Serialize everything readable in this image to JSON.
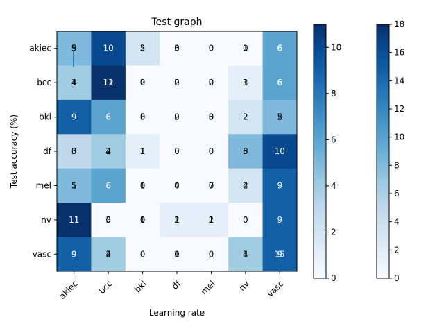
{
  "chart_data": {
    "type": "heatmap",
    "title": "Test graph",
    "xlabel": "Learning rate",
    "ylabel": "Test accuracy (%)",
    "categories_x": [
      "akiec",
      "bcc",
      "bkl",
      "df",
      "mel",
      "nv",
      "vasc"
    ],
    "categories_y": [
      "akiec",
      "bcc",
      "bkl",
      "df",
      "mel",
      "nv",
      "vasc"
    ],
    "cmap": "Blues",
    "values": [
      [
        5,
        10,
        2,
        0,
        0,
        0,
        6
      ],
      [
        4,
        11,
        0,
        0,
        0,
        1,
        6
      ],
      [
        9,
        6,
        0,
        0,
        0,
        2,
        5
      ],
      [
        3,
        4,
        1,
        0,
        0,
        5,
        10
      ],
      [
        5,
        6,
        0,
        0,
        0,
        2,
        9
      ],
      [
        11,
        0,
        0,
        1,
        1,
        0,
        9
      ],
      [
        9,
        4,
        0,
        0,
        0,
        4,
        9
      ]
    ],
    "overlay_labels": [
      [
        "9",
        "",
        "5",
        "3",
        "",
        "1",
        "6"
      ],
      [
        "1",
        "12",
        "2",
        "2",
        "2",
        "3",
        "6"
      ],
      [
        "",
        "",
        "5",
        "2",
        "3",
        "",
        "2"
      ],
      [
        "0",
        "2",
        "2",
        "",
        "",
        "0",
        ""
      ],
      [
        "1",
        "",
        "1",
        "4",
        "7",
        "4",
        ""
      ],
      [
        "",
        "3",
        "1",
        "2",
        "2",
        "",
        ""
      ],
      [
        "",
        "2",
        "",
        "1",
        "",
        "1",
        "15"
      ]
    ],
    "colorbars": [
      {
        "min": 0,
        "max": 11,
        "ticks": [
          "0",
          "2",
          "4",
          "6",
          "8",
          "10"
        ]
      },
      {
        "min": 0,
        "max": 18,
        "ticks": [
          "0",
          "2",
          "4",
          "6",
          "8",
          "10",
          "12",
          "14",
          "16",
          "18"
        ]
      }
    ]
  }
}
